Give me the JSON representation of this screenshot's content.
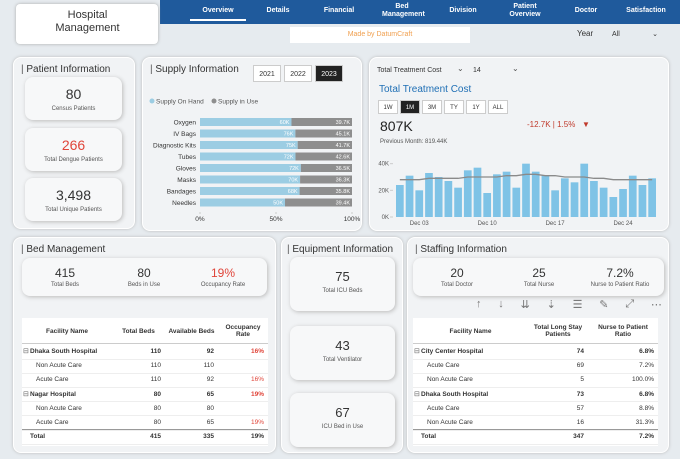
{
  "header": {
    "title": "Hospital Management",
    "nav": [
      "Overview",
      "Details",
      "Financial",
      "Bed Management",
      "Division",
      "Patient Overview",
      "Doctor",
      "Satisfaction"
    ],
    "made_by": "Made by DatumCraft",
    "year_label": "Year",
    "year_value": "All"
  },
  "patient_info": {
    "title": "Patient Information",
    "cards": [
      {
        "value": "80",
        "label": "Census Patients"
      },
      {
        "value": "266",
        "label": "Total Dengue Patients"
      },
      {
        "value": "3,498",
        "label": "Total Unique Patients"
      }
    ]
  },
  "supply": {
    "title": "Supply Information",
    "years": [
      "2021",
      "2022",
      "2023"
    ],
    "chart_data": {
      "type": "stacked_bar_h",
      "categories": [
        "Oxygen",
        "IV Bags",
        "Diagnostic Kits",
        "Tubes",
        "Gloves",
        "Masks",
        "Bandages",
        "Needles"
      ],
      "series": [
        {
          "name": "Supply On Hand",
          "color": "#9ccde3",
          "values": [
            60.18,
            62.76,
            64.27,
            62.83,
            66.36,
            65.85,
            65.51,
            55.93
          ],
          "value_labels": [
            "60K",
            "76K",
            "75K",
            "72K",
            "72K",
            "70K",
            "68K",
            "50K"
          ]
        },
        {
          "name": "Supply in Use",
          "color": "#8e8e8e",
          "values": [
            39.82,
            37.24,
            35.73,
            37.17,
            33.64,
            34.15,
            34.49,
            44.07
          ],
          "value_labels": [
            "39.7K",
            "45.1K",
            "41.7K",
            "42.6K",
            "36.5K",
            "36.3K",
            "35.8K",
            "39.4K"
          ]
        }
      ],
      "xlim": [
        0,
        100
      ],
      "xticks": [
        {
          "value": 0,
          "label": "0%"
        },
        {
          "value": 50,
          "label": "50%"
        },
        {
          "value": 100,
          "label": "100%"
        }
      ]
    }
  },
  "treatment": {
    "measure": "Total Treatment Cost",
    "count": "14",
    "title": "Total Treatment Cost",
    "periods": [
      "1W",
      "1M",
      "3M",
      "TY",
      "1Y",
      "ALL"
    ],
    "value": "807K",
    "change": "-12.7K | 1.5%",
    "change_arrow": "▼",
    "previous": "Previous Month: 819.44K",
    "chart_data": {
      "type": "bar_line",
      "categories": [
        null,
        null,
        "Dec 03",
        null,
        null,
        null,
        null,
        null,
        null,
        "Dec 10",
        null,
        null,
        null,
        null,
        null,
        null,
        "Dec 17",
        null,
        null,
        null,
        null,
        null,
        null,
        "Dec 24",
        null,
        null,
        null
      ],
      "series": [
        {
          "type": "bar",
          "color": "#7fc3e6",
          "values": [
            24,
            31,
            20,
            33,
            30,
            27,
            22,
            35,
            37,
            18,
            32,
            34,
            22,
            40,
            34,
            31,
            20,
            29,
            26,
            40,
            27,
            22,
            15,
            21,
            31,
            24,
            29
          ]
        },
        {
          "type": "line",
          "color": "#8a8a8a",
          "values": [
            28,
            28,
            28,
            29,
            29,
            29,
            29,
            30,
            30,
            30,
            30,
            31,
            31,
            32,
            32,
            31,
            31,
            30,
            30,
            30,
            29,
            29,
            28,
            28,
            28,
            28,
            28
          ]
        }
      ],
      "ylim": [
        0,
        45
      ],
      "yticks": [
        {
          "value": 0,
          "label": "0K"
        },
        {
          "value": 20,
          "label": "20K"
        },
        {
          "value": 40,
          "label": "40K"
        }
      ]
    }
  },
  "bed_management": {
    "title": "Bed Management",
    "kpis": [
      {
        "value": "415",
        "label": "Total Beds"
      },
      {
        "value": "80",
        "label": "Beds in Use"
      },
      {
        "value": "19%",
        "label": "Occupancy Rate"
      }
    ],
    "table": {
      "columns": [
        "Facility Name",
        "Total Beds",
        "Available Beds",
        "Occupancy Rate"
      ],
      "rows": [
        [
          "Dhaka South Hospital",
          "110",
          "92",
          "16%"
        ],
        [
          "Non Acute Care",
          "110",
          "110",
          null
        ],
        [
          "Acute Care",
          "110",
          "92",
          "16%"
        ],
        [
          "Nagar Hospital",
          "80",
          "65",
          "19%"
        ],
        [
          "Non Acute Care",
          "80",
          "80",
          null
        ],
        [
          "Acute Care",
          "80",
          "65",
          "19%"
        ],
        [
          "Total",
          "415",
          "335",
          "19%"
        ]
      ]
    }
  },
  "equipment": {
    "title": "Equipment Information",
    "cards": [
      {
        "value": "75",
        "label": "Total ICU Beds"
      },
      {
        "value": "43",
        "label": "Total Ventilator"
      },
      {
        "value": "67",
        "label": "ICU Bed in Use"
      }
    ]
  },
  "staffing": {
    "title": "Staffing Information",
    "kpis": [
      {
        "value": "20",
        "label": "Total Doctor"
      },
      {
        "value": "25",
        "label": "Total Nurse"
      },
      {
        "value": "7.2%",
        "label": "Nurse to Patient Ratio"
      }
    ],
    "table": {
      "columns": [
        "Facility Name",
        "Total Long Stay Patients",
        "Nurse to Patient Ratio"
      ],
      "rows": [
        [
          "City Center Hospital",
          "74",
          "6.8%"
        ],
        [
          "Acute Care",
          "69",
          "7.2%"
        ],
        [
          "Non Acute Care",
          "5",
          "100.0%"
        ],
        [
          "Dhaka South Hospital",
          "73",
          "6.8%"
        ],
        [
          "Acute Care",
          "57",
          "8.8%"
        ],
        [
          "Non Acute Care",
          "16",
          "31.3%"
        ],
        [
          "Total",
          "347",
          "7.2%"
        ]
      ]
    }
  }
}
